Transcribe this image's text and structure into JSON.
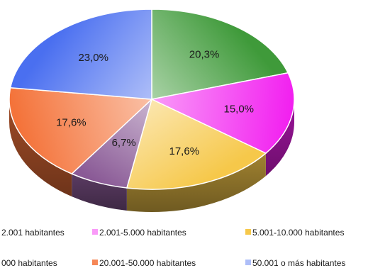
{
  "chart_data": {
    "type": "pie",
    "title": "",
    "slices": [
      {
        "label": "2.001 habitantes",
        "value": 20.3,
        "value_label": "20,3%",
        "color": "#3f9a3a"
      },
      {
        "label": "2.001-5.000 habitantes",
        "value": 15.0,
        "value_label": "15,0%",
        "color": "#f21ff0"
      },
      {
        "label": "5.001-10.000 habitantes",
        "value": 17.6,
        "value_label": "17,6%",
        "color": "#f6c84a"
      },
      {
        "label": "000 habitantes",
        "value": 6.7,
        "value_label": "6,7%",
        "color": "#8a5a96"
      },
      {
        "label": "20.001-50.000 habitantes",
        "value": 17.6,
        "value_label": "17,6%",
        "color": "#f4733a"
      },
      {
        "label": "50.001 o más habitantes",
        "value": 23.0,
        "value_label": "23,0%",
        "color": "#4a6ff0"
      }
    ],
    "legend_position": "bottom"
  }
}
